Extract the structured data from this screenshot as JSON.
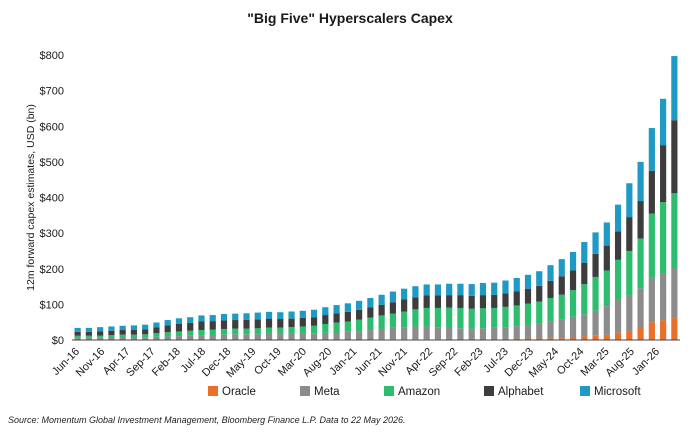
{
  "chart_data": {
    "type": "bar",
    "stacked": true,
    "title": "\"Big Five\" Hyperscalers Capex",
    "ylabel": "12m forward capex estimates, USD (bn)",
    "xlabel": "",
    "ylim": [
      0,
      800
    ],
    "yticks": [
      "$0",
      "$100",
      "$200",
      "$300",
      "$400",
      "$500",
      "$600",
      "$700",
      "$800"
    ],
    "xtick_labels": [
      "Jun-16",
      "Nov-16",
      "Apr-17",
      "Sep-17",
      "Feb-18",
      "Jul-18",
      "Dec-18",
      "May-19",
      "Oct-19",
      "Mar-20",
      "Aug-20",
      "Jan-21",
      "Jun-21",
      "Nov-21",
      "Apr-22",
      "Sep-22",
      "Feb-23",
      "Jul-23",
      "Dec-23",
      "May-24",
      "Oct-24",
      "Mar-25",
      "Aug-25",
      "Jan-26"
    ],
    "legend_position": "bottom",
    "grid": false,
    "series": [
      {
        "name": "Oracle",
        "color": "#e8702a",
        "values": [
          1,
          1,
          1,
          1,
          1,
          1,
          1,
          1,
          1,
          1,
          1,
          1,
          1,
          1,
          1,
          1,
          1,
          1,
          1,
          1,
          1,
          1,
          1,
          1,
          1,
          1,
          1,
          2,
          2,
          2,
          2,
          2,
          2,
          3,
          3,
          3,
          3,
          3,
          3,
          4,
          4,
          4,
          5,
          5,
          7,
          10,
          12,
          15,
          20,
          25,
          35,
          50,
          55,
          62
        ]
      },
      {
        "name": "Meta",
        "color": "#8c8c8c",
        "values": [
          5,
          5,
          5,
          6,
          6,
          6,
          7,
          8,
          9,
          10,
          11,
          12,
          13,
          14,
          15,
          15,
          15,
          16,
          16,
          16,
          17,
          18,
          19,
          20,
          22,
          24,
          27,
          29,
          32,
          34,
          36,
          36,
          34,
          32,
          30,
          29,
          30,
          31,
          33,
          35,
          38,
          42,
          48,
          52,
          58,
          62,
          70,
          80,
          95,
          100,
          110,
          125,
          132,
          140
        ]
      },
      {
        "name": "Amazon",
        "color": "#2ebd6e",
        "values": [
          6,
          6,
          6,
          7,
          8,
          8,
          8,
          10,
          12,
          13,
          14,
          15,
          15,
          16,
          16,
          16,
          17,
          18,
          18,
          19,
          20,
          21,
          25,
          28,
          29,
          32,
          35,
          38,
          40,
          44,
          48,
          52,
          54,
          56,
          57,
          56,
          56,
          56,
          57,
          58,
          60,
          62,
          65,
          70,
          75,
          85,
          95,
          100,
          110,
          125,
          140,
          180,
          200,
          210
        ]
      },
      {
        "name": "Alphabet",
        "color": "#3d3d3d",
        "values": [
          11,
          11,
          12,
          12,
          13,
          13,
          14,
          16,
          19,
          21,
          22,
          24,
          24,
          24,
          24,
          25,
          25,
          25,
          24,
          24,
          24,
          24,
          25,
          26,
          27,
          28,
          29,
          30,
          32,
          34,
          34,
          35,
          35,
          35,
          36,
          36,
          37,
          37,
          38,
          40,
          42,
          44,
          48,
          52,
          55,
          60,
          65,
          70,
          80,
          95,
          105,
          120,
          160,
          205
        ]
      },
      {
        "name": "Microsoft",
        "color": "#1f9ac4",
        "values": [
          11,
          11,
          12,
          12,
          12,
          13,
          13,
          14,
          15,
          16,
          16,
          17,
          17,
          18,
          18,
          18,
          19,
          19,
          19,
          20,
          20,
          21,
          22,
          23,
          24,
          25,
          26,
          28,
          30,
          30,
          31,
          31,
          31,
          32,
          32,
          33,
          34,
          34,
          36,
          37,
          39,
          41,
          44,
          48,
          52,
          58,
          60,
          65,
          75,
          95,
          110,
          120,
          130,
          180
        ]
      }
    ]
  },
  "legend": [
    "Oracle",
    "Meta",
    "Amazon",
    "Alphabet",
    "Microsoft"
  ],
  "source": "Source: Momentum Global Investment Management, Bloomberg Finance L.P. Data to 22 May 2026."
}
